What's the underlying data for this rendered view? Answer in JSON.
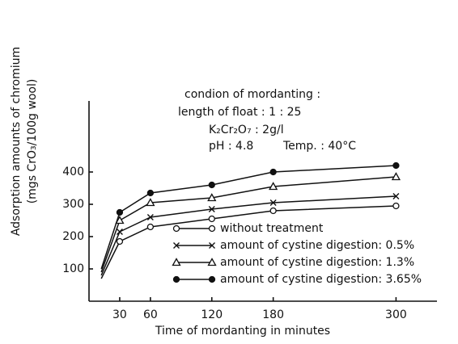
{
  "chart_data": {
    "type": "line",
    "x_label": "Time of mordanting in minutes",
    "y_label": [
      "Adsorption amounts of chromium",
      "(mgs CrO₃/100g wool)"
    ],
    "annotations": [
      "condion of mordanting :",
      "length of float : 1 : 25",
      "K₂Cr₂O₇ : 2g/l",
      "pH : 4.8",
      "Temp. : 40°C"
    ],
    "x": [
      12,
      30,
      60,
      120,
      180,
      300
    ],
    "series": [
      {
        "name": "without treatment",
        "marker": "open-circle",
        "color": "#111111",
        "values": [
          70,
          185,
          230,
          255,
          280,
          295
        ]
      },
      {
        "name": "amount of cystine digestion: 0.5%",
        "marker": "cross",
        "color": "#111111",
        "values": [
          80,
          215,
          260,
          285,
          305,
          325
        ]
      },
      {
        "name": "amount of cystine digestion: 1.3%",
        "marker": "open-triangle",
        "color": "#111111",
        "values": [
          90,
          250,
          305,
          320,
          355,
          385
        ]
      },
      {
        "name": "amount of cystine digestion: 3.65%",
        "marker": "filled-circle",
        "color": "#111111",
        "values": [
          100,
          275,
          335,
          360,
          400,
          420
        ]
      }
    ],
    "xlim": [
      0,
      340
    ],
    "ylim": [
      0,
      620
    ],
    "xticks": [
      30,
      60,
      120,
      180,
      300
    ],
    "yticks": [
      100,
      200,
      300,
      400
    ]
  }
}
